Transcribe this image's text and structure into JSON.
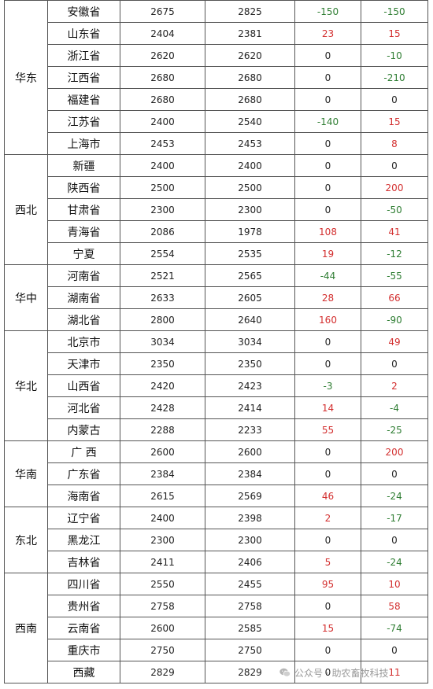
{
  "table": {
    "groups": [
      {
        "region": "华东",
        "rows": [
          {
            "province": "安徽省",
            "price_a": "2675",
            "price_b": "2825",
            "change_1": "-150",
            "change_2": "-150"
          },
          {
            "province": "山东省",
            "price_a": "2404",
            "price_b": "2381",
            "change_1": "23",
            "change_2": "15"
          },
          {
            "province": "浙江省",
            "price_a": "2620",
            "price_b": "2620",
            "change_1": "0",
            "change_2": "-10"
          },
          {
            "province": "江西省",
            "price_a": "2680",
            "price_b": "2680",
            "change_1": "0",
            "change_2": "-210"
          },
          {
            "province": "福建省",
            "price_a": "2680",
            "price_b": "2680",
            "change_1": "0",
            "change_2": "0"
          },
          {
            "province": "江苏省",
            "price_a": "2400",
            "price_b": "2540",
            "change_1": "-140",
            "change_2": "15"
          },
          {
            "province": "上海市",
            "price_a": "2453",
            "price_b": "2453",
            "change_1": "0",
            "change_2": "8"
          }
        ]
      },
      {
        "region": "西北",
        "rows": [
          {
            "province": "新疆",
            "price_a": "2400",
            "price_b": "2400",
            "change_1": "0",
            "change_2": "0"
          },
          {
            "province": "陕西省",
            "price_a": "2500",
            "price_b": "2500",
            "change_1": "0",
            "change_2": "200"
          },
          {
            "province": "甘肃省",
            "price_a": "2300",
            "price_b": "2300",
            "change_1": "0",
            "change_2": "-50"
          },
          {
            "province": "青海省",
            "price_a": "2086",
            "price_b": "1978",
            "change_1": "108",
            "change_2": "41"
          },
          {
            "province": "宁夏",
            "price_a": "2554",
            "price_b": "2535",
            "change_1": "19",
            "change_2": "-12"
          }
        ]
      },
      {
        "region": "华中",
        "rows": [
          {
            "province": "河南省",
            "price_a": "2521",
            "price_b": "2565",
            "change_1": "-44",
            "change_2": "-55"
          },
          {
            "province": "湖南省",
            "price_a": "2633",
            "price_b": "2605",
            "change_1": "28",
            "change_2": "66"
          },
          {
            "province": "湖北省",
            "price_a": "2800",
            "price_b": "2640",
            "change_1": "160",
            "change_2": "-90"
          }
        ]
      },
      {
        "region": "华北",
        "rows": [
          {
            "province": "北京市",
            "price_a": "3034",
            "price_b": "3034",
            "change_1": "0",
            "change_2": "49"
          },
          {
            "province": "天津市",
            "price_a": "2350",
            "price_b": "2350",
            "change_1": "0",
            "change_2": "0"
          },
          {
            "province": "山西省",
            "price_a": "2420",
            "price_b": "2423",
            "change_1": "-3",
            "change_2": "2"
          },
          {
            "province": "河北省",
            "price_a": "2428",
            "price_b": "2414",
            "change_1": "14",
            "change_2": "-4"
          },
          {
            "province": "内蒙古",
            "price_a": "2288",
            "price_b": "2233",
            "change_1": "55",
            "change_2": "-25"
          }
        ]
      },
      {
        "region": "华南",
        "rows": [
          {
            "province": "广 西",
            "price_a": "2600",
            "price_b": "2600",
            "change_1": "0",
            "change_2": "200"
          },
          {
            "province": "广东省",
            "price_a": "2384",
            "price_b": "2384",
            "change_1": "0",
            "change_2": "0"
          },
          {
            "province": "海南省",
            "price_a": "2615",
            "price_b": "2569",
            "change_1": "46",
            "change_2": "-24"
          }
        ]
      },
      {
        "region": "东北",
        "rows": [
          {
            "province": "辽宁省",
            "price_a": "2400",
            "price_b": "2398",
            "change_1": "2",
            "change_2": "-17"
          },
          {
            "province": "黑龙江",
            "price_a": "2300",
            "price_b": "2300",
            "change_1": "0",
            "change_2": "0"
          },
          {
            "province": "吉林省",
            "price_a": "2411",
            "price_b": "2406",
            "change_1": "5",
            "change_2": "-24"
          }
        ]
      },
      {
        "region": "西南",
        "rows": [
          {
            "province": "四川省",
            "price_a": "2550",
            "price_b": "2455",
            "change_1": "95",
            "change_2": "10"
          },
          {
            "province": "贵州省",
            "price_a": "2758",
            "price_b": "2758",
            "change_1": "0",
            "change_2": "58"
          },
          {
            "province": "云南省",
            "price_a": "2600",
            "price_b": "2585",
            "change_1": "15",
            "change_2": "-74"
          },
          {
            "province": "重庆市",
            "price_a": "2750",
            "price_b": "2750",
            "change_1": "0",
            "change_2": "0"
          },
          {
            "province": "西藏",
            "price_a": "2829",
            "price_b": "2829",
            "change_1": "0",
            "change_2": "11"
          }
        ]
      }
    ]
  },
  "colors": {
    "increase": "#d32f2f",
    "decrease": "#2e7d32",
    "unchanged": "#222222"
  },
  "watermark": {
    "icon": "wechat-icon",
    "text": "公众号 · 助农畜牧科技"
  }
}
